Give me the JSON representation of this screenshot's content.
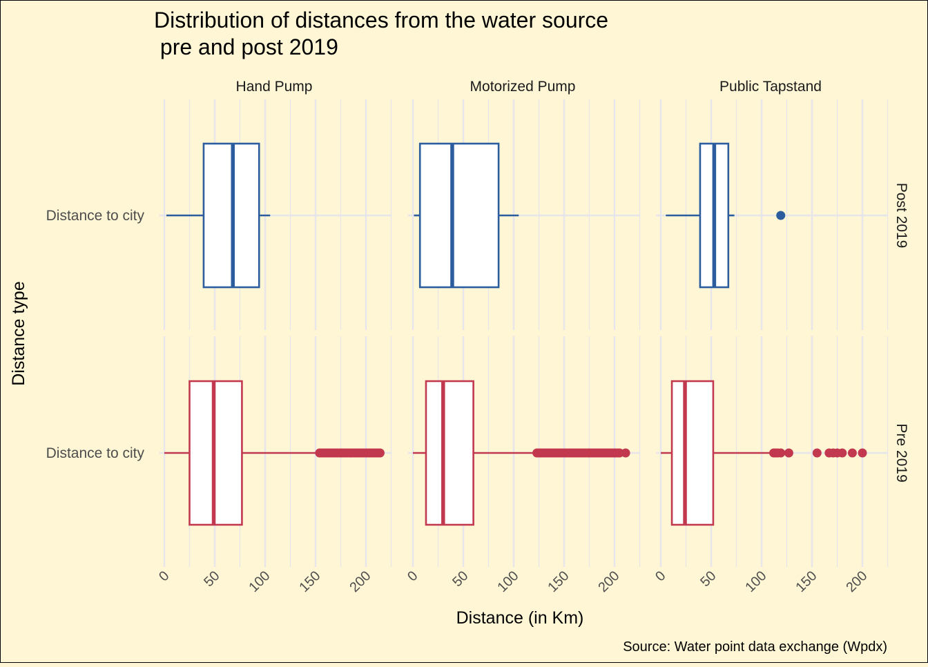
{
  "chart_data": {
    "type": "boxplot",
    "title_line1": "Distribution of distances from the water source",
    "title_line2": " pre and post 2019",
    "xlabel": "Distance (in Km)",
    "ylabel": "Distance type",
    "caption": "Source: Water point data exchange (Wpdx)",
    "xlim": [
      -3,
      218
    ],
    "x_ticks": [
      0,
      50,
      100,
      150,
      200
    ],
    "x_tick_labels": [
      "0",
      "50",
      "100",
      "150",
      "200"
    ],
    "y_category": "Distance to city",
    "facet_columns": [
      "Hand Pump",
      "Motorized Pump",
      "Public Tapstand"
    ],
    "facet_rows": [
      "Post 2019",
      "Pre 2019"
    ],
    "colors": {
      "Post 2019": "#2A5C9E",
      "Pre 2019": "#C1384F",
      "background": "#FFF6D5",
      "grid": "#E5E5EB"
    },
    "boxes": [
      {
        "column": "Hand Pump",
        "row": "Post 2019",
        "whisker_low": 2,
        "q1": 39,
        "median": 68,
        "q3": 94,
        "whisker_high": 105,
        "outliers": []
      },
      {
        "column": "Motorized Pump",
        "row": "Post 2019",
        "whisker_low": 1,
        "q1": 7,
        "median": 39,
        "q3": 85,
        "whisker_high": 105,
        "outliers": []
      },
      {
        "column": "Public Tapstand",
        "row": "Post 2019",
        "whisker_low": 5,
        "q1": 39,
        "median": 53,
        "q3": 67,
        "whisker_high": 73,
        "outliers": [
          119
        ]
      },
      {
        "column": "Hand Pump",
        "row": "Pre 2019",
        "whisker_low": 0,
        "q1": 25,
        "median": 49,
        "q3": 77,
        "whisker_high": 153,
        "outliers": [
          154,
          156,
          158,
          160,
          162,
          164,
          166,
          168,
          170,
          172,
          174,
          176,
          178,
          180,
          182,
          184,
          186,
          188,
          190,
          192,
          194,
          196,
          198,
          200,
          202,
          204,
          206,
          208,
          210,
          212,
          214
        ]
      },
      {
        "column": "Motorized Pump",
        "row": "Pre 2019",
        "whisker_low": 0,
        "q1": 13,
        "median": 30,
        "q3": 60,
        "whisker_high": 122,
        "outliers": [
          123,
          125,
          127,
          129,
          131,
          133,
          135,
          137,
          139,
          141,
          143,
          145,
          147,
          149,
          151,
          153,
          155,
          157,
          159,
          161,
          163,
          165,
          167,
          169,
          171,
          173,
          175,
          177,
          179,
          181,
          183,
          185,
          187,
          189,
          191,
          193,
          195,
          197,
          199,
          201,
          203,
          205,
          211
        ]
      },
      {
        "column": "Public Tapstand",
        "row": "Pre 2019",
        "whisker_low": 0,
        "q1": 11,
        "median": 24,
        "q3": 52,
        "whisker_high": 110,
        "outliers": [
          112,
          114,
          116,
          119,
          127,
          155,
          167,
          171,
          175,
          180,
          190,
          200
        ]
      }
    ]
  }
}
